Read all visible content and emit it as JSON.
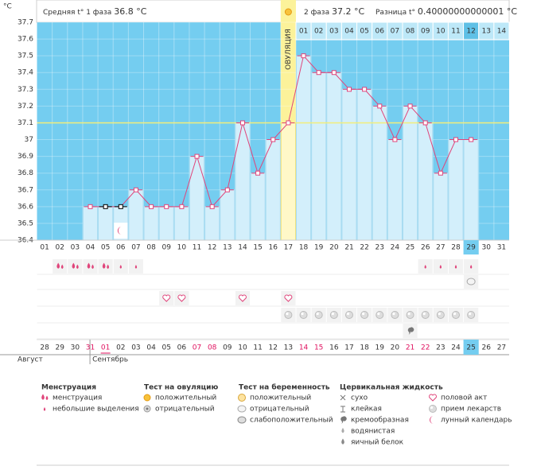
{
  "header": {
    "phase1_label": "Средняя t° 1 фаза",
    "phase1_value": "36.8 °C",
    "phase2_label": "2 фаза",
    "phase2_value": "37.2 °C",
    "diff_label": "Разница t°",
    "diff_value": "0.40000000000001 °C"
  },
  "chart_data": {
    "type": "line",
    "y_unit": "°C",
    "categories": [
      "01",
      "02",
      "03",
      "04",
      "05",
      "06",
      "07",
      "08",
      "09",
      "10",
      "11",
      "12",
      "13",
      "14",
      "15",
      "16",
      "17",
      "18",
      "19",
      "20",
      "21",
      "22",
      "23",
      "24",
      "25",
      "26",
      "27",
      "28",
      "29",
      "30",
      "31"
    ],
    "values": [
      null,
      null,
      null,
      36.6,
      36.6,
      36.6,
      36.7,
      36.6,
      36.6,
      36.6,
      36.9,
      36.6,
      36.7,
      37.1,
      36.8,
      37.0,
      37.1,
      37.5,
      37.4,
      37.4,
      37.3,
      37.3,
      37.2,
      37.0,
      37.2,
      37.1,
      36.8,
      37.0,
      37.0,
      null,
      null
    ],
    "color": "#e0457b",
    "highlight_points": [
      "05",
      "06"
    ],
    "highlight_color": "#000000",
    "ylim": [
      36.4,
      37.7
    ],
    "yticks": [
      36.4,
      36.5,
      36.6,
      36.7,
      36.8,
      36.9,
      37,
      37.1,
      37.2,
      37.3,
      37.4,
      37.5,
      37.6,
      37.7
    ],
    "coverline": 37.1,
    "ovulation_day": "17",
    "ovulation_label": "ОВУЛЯЦИЯ",
    "phase2_days": [
      "01",
      "02",
      "03",
      "04",
      "05",
      "06",
      "07",
      "08",
      "09",
      "10",
      "11",
      "12",
      "13",
      "14"
    ],
    "today": "29",
    "dates": [
      "28",
      "29",
      "30",
      "31",
      "01",
      "02",
      "03",
      "04",
      "05",
      "06",
      "07",
      "08",
      "09",
      "10",
      "11",
      "12",
      "13",
      "14",
      "15",
      "16",
      "17",
      "18",
      "19",
      "20",
      "21",
      "22",
      "23",
      "24",
      "25",
      "26",
      "27"
    ],
    "weekend": [
      false,
      false,
      false,
      true,
      true,
      false,
      false,
      false,
      false,
      false,
      true,
      true,
      false,
      false,
      false,
      false,
      false,
      true,
      true,
      false,
      false,
      false,
      false,
      false,
      true,
      true,
      false,
      false,
      false,
      false,
      false
    ],
    "weekend_color": "#e0115f",
    "months": [
      {
        "label": "Август",
        "start": "28"
      },
      {
        "label": "Сентябрь",
        "start": "01"
      }
    ]
  },
  "legend": [
    {
      "title": "Менструация",
      "items": [
        {
          "label": "менструация",
          "days": [
            "02",
            "03",
            "04",
            "05"
          ]
        },
        {
          "label": "небольшие выделения",
          "days": [
            "06",
            "07",
            "26",
            "27",
            "28",
            "29"
          ]
        }
      ]
    },
    {
      "title": "Тест на овуляцию",
      "items": [
        {
          "label": "положительный"
        },
        {
          "label": "отрицательный"
        }
      ]
    },
    {
      "title": "Тест на беременность",
      "items": [
        {
          "label": "положительный"
        },
        {
          "label": "отрицательный",
          "days": [
            "29"
          ]
        },
        {
          "label": "слабоположительный"
        }
      ]
    },
    {
      "title": "Цервикальная жидкость",
      "items": [
        {
          "label": "сухо"
        },
        {
          "label": "клейкая"
        },
        {
          "label": "кремообразная",
          "days": [
            "25"
          ]
        },
        {
          "label": "водянистая"
        },
        {
          "label": "яичный белок"
        }
      ]
    },
    {
      "items": [
        {
          "label": "половой акт",
          "days": [
            "09",
            "10",
            "14",
            "17"
          ]
        },
        {
          "label": "прием лекарств",
          "days": [
            "17",
            "18",
            "19",
            "20",
            "21",
            "22",
            "23",
            "24",
            "25",
            "26",
            "27",
            "28",
            "29"
          ]
        },
        {
          "label": "лунный календарь",
          "days": [
            "06"
          ]
        }
      ]
    }
  ]
}
